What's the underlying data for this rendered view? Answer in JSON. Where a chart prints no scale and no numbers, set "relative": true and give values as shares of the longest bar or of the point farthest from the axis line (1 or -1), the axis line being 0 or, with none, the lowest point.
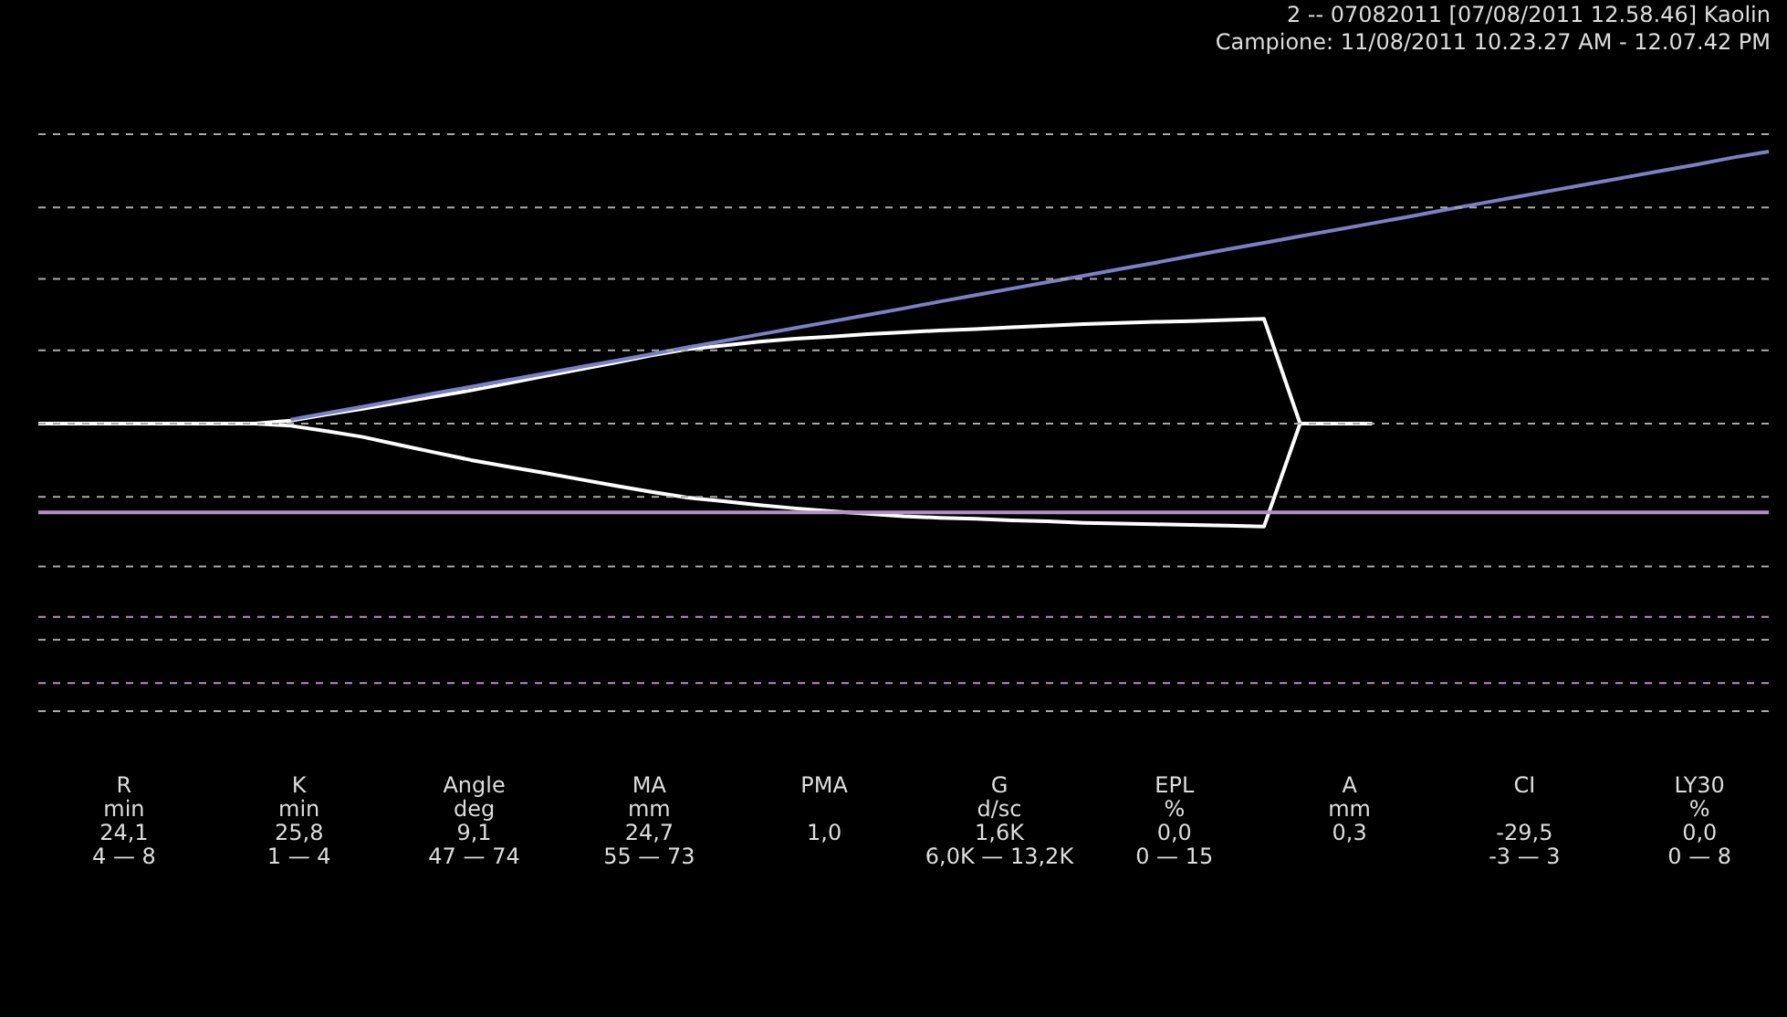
{
  "chart_data": {
    "type": "line",
    "relative": true,
    "title": "2          -- 07082011 [07/08/2011 12.58.46]       Kaolin",
    "subtitle": "Campione: 11/08/2011 10.23.27 AM - 12.07.42 PM",
    "categories": [
      null,
      null,
      null,
      null,
      null,
      null,
      null,
      null,
      null,
      null,
      null,
      null,
      null,
      null,
      null,
      null,
      null,
      null,
      null,
      null,
      null,
      null,
      null,
      null,
      null,
      null,
      null,
      null,
      null,
      null,
      null,
      null,
      null,
      null,
      null,
      null,
      null,
      null,
      null,
      null,
      null,
      null,
      null,
      null,
      null,
      null,
      null,
      null,
      null
    ],
    "series": [
      {
        "color": "#ffffff",
        "values": [
          0.246,
          0.246,
          0.246,
          0.246,
          0.246,
          0.246,
          0.246,
          0.254,
          0.271,
          0.287,
          0.304,
          0.321,
          0.338,
          0.357,
          0.377,
          0.396,
          0.415,
          0.435,
          0.452,
          0.462,
          0.473,
          0.481,
          0.487,
          0.494,
          0.499,
          0.504,
          0.508,
          0.513,
          0.517,
          0.522,
          0.525,
          0.528,
          0.53,
          0.533,
          0.536,
          0.246,
          0.246,
          0.246,
          null,
          null,
          null,
          null,
          null,
          null,
          null,
          null,
          null,
          null,
          null
        ]
      },
      {
        "color": "#ffffff",
        "values": [
          null,
          null,
          null,
          null,
          null,
          null,
          0.246,
          0.24,
          0.225,
          0.209,
          0.187,
          0.166,
          0.145,
          0.127,
          0.11,
          0.092,
          0.074,
          0.057,
          0.041,
          0.031,
          0.02,
          0.011,
          0.003,
          -0.004,
          -0.011,
          -0.015,
          -0.018,
          -0.022,
          -0.025,
          -0.029,
          -0.031,
          -0.033,
          -0.035,
          -0.037,
          -0.039,
          0.246,
          null,
          null,
          null,
          null,
          null,
          null,
          null,
          null,
          null,
          null,
          null,
          null,
          null
        ]
      },
      {
        "color": "#7b7fc4",
        "values": [
          null,
          null,
          null,
          null,
          null,
          null,
          null,
          0.257,
          0.275,
          0.293,
          0.311,
          0.33,
          0.348,
          0.366,
          0.384,
          0.402,
          0.42,
          0.438,
          0.457,
          0.475,
          0.493,
          0.511,
          0.529,
          0.547,
          0.565,
          0.584,
          0.602,
          0.62,
          0.638,
          0.656,
          0.674,
          0.692,
          0.711,
          0.729,
          0.747,
          0.765,
          0.783,
          0.801,
          0.819,
          0.838,
          0.856,
          0.874,
          0.892,
          0.91,
          0.928,
          0.946,
          0.964,
          0.983,
          1.0
        ]
      }
    ],
    "ref_lines": [
      {
        "axis": "y",
        "value": 1.048,
        "color": "#aaaaaa",
        "line_style": "dashed"
      },
      {
        "axis": "y",
        "value": 0.845,
        "color": "#aaaaaa",
        "line_style": "dashed"
      },
      {
        "axis": "y",
        "value": 0.647,
        "color": "#aaaaaa",
        "line_style": "dashed"
      },
      {
        "axis": "y",
        "value": 0.449,
        "color": "#aaaaaa",
        "line_style": "dashed"
      },
      {
        "axis": "y",
        "value": 0.246,
        "color": "#aaaaaa",
        "line_style": "dashed"
      },
      {
        "axis": "y",
        "value": 0.043,
        "color": "#aaaaaa",
        "line_style": "dashed"
      },
      {
        "axis": "y",
        "value": 0,
        "color": "#b58fc4",
        "line_style": "solid"
      },
      {
        "axis": "y",
        "value": -0.15,
        "color": "#aaaaaa",
        "line_style": "dashed"
      },
      {
        "axis": "y",
        "value": -0.29,
        "color": "#b58fc4",
        "line_style": "dashed"
      },
      {
        "axis": "y",
        "value": -0.353,
        "color": "#aaaaaa",
        "line_style": "dashed"
      },
      {
        "axis": "y",
        "value": -0.473,
        "color": "#b58fc4",
        "line_style": "dashed"
      },
      {
        "axis": "y",
        "value": -0.551,
        "color": "#aaaaaa",
        "line_style": "dashed"
      }
    ],
    "annotations": [
      "R\nmin\n24,1\n4 — 8",
      "K\nmin\n25,8\n1 — 4",
      "Angle\ndeg\n9,1\n47 — 74",
      "MA\nmm\n24,7\n55 — 73",
      "PMA\n\n1,0\n",
      "G\nd/sc\n1,6K\n6,0K — 13,2K",
      "EPL\n%\n0,0\n0 — 15",
      "A\nmm\n0,3\n",
      "CI\n\n-29,5\n-3 — 3",
      "LY30\n%\n0,0\n0 — 8"
    ],
    "legend": false,
    "tick_labels": false
  }
}
